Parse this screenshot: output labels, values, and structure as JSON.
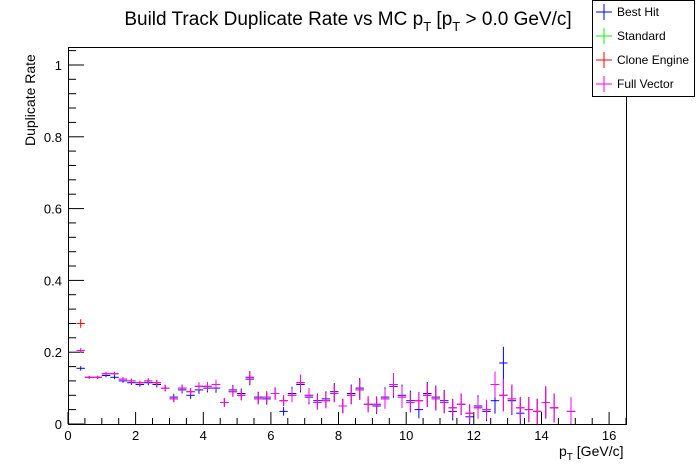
{
  "chart_data": {
    "type": "scatter",
    "title_main": "Build Track Duplicate Rate vs MC p",
    "title_sub1": "T",
    "title_mid": " [p",
    "title_sub2": "T",
    "title_end": " > 0.0 GeV/c]",
    "xlabel_main": "p",
    "xlabel_sub": "T",
    "xlabel_unit": " [GeV/c]",
    "ylabel": "Duplicate Rate",
    "xlim": [
      0,
      16.5
    ],
    "ylim": [
      0,
      1.05
    ],
    "x_ticks": [
      0,
      2,
      4,
      6,
      8,
      10,
      12,
      14,
      16
    ],
    "y_ticks": [
      0,
      0.2,
      0.4,
      0.6,
      0.8,
      1
    ],
    "x_tick_labels": [
      "0",
      "2",
      "4",
      "6",
      "8",
      "10",
      "12",
      "14",
      "16"
    ],
    "y_tick_labels": [
      "0",
      "0.2",
      "0.4",
      "0.6",
      "0.8",
      "1"
    ],
    "bin_width": 0.25,
    "legend_position": "top-right",
    "grid": false,
    "series": [
      {
        "name": "Best Hit",
        "color": "#0000ff",
        "points": [
          [
            0.375,
            0.155,
            0.006
          ],
          [
            0.625,
            0.13,
            0.004
          ],
          [
            0.875,
            0.13,
            0.004
          ],
          [
            1.125,
            0.135,
            0.005
          ],
          [
            1.375,
            0.13,
            0.005
          ],
          [
            1.625,
            0.12,
            0.005
          ],
          [
            1.875,
            0.115,
            0.006
          ],
          [
            2.125,
            0.11,
            0.006
          ],
          [
            2.375,
            0.115,
            0.007
          ],
          [
            2.625,
            0.11,
            0.008
          ],
          [
            2.875,
            0.1,
            0.009
          ],
          [
            3.125,
            0.075,
            0.009
          ],
          [
            3.375,
            0.095,
            0.01
          ],
          [
            3.625,
            0.08,
            0.01
          ],
          [
            3.875,
            0.095,
            0.011
          ],
          [
            4.125,
            0.1,
            0.012
          ],
          [
            4.375,
            0.1,
            0.013
          ],
          [
            4.625,
            0.06,
            0.012
          ],
          [
            4.875,
            0.095,
            0.014
          ],
          [
            5.125,
            0.085,
            0.014
          ],
          [
            5.375,
            0.125,
            0.017
          ],
          [
            5.625,
            0.075,
            0.015
          ],
          [
            5.875,
            0.07,
            0.016
          ],
          [
            6.125,
            0.085,
            0.017
          ],
          [
            6.375,
            0.035,
            0.012
          ],
          [
            6.625,
            0.085,
            0.019
          ],
          [
            6.875,
            0.11,
            0.022
          ],
          [
            7.125,
            0.075,
            0.02
          ],
          [
            7.375,
            0.065,
            0.02
          ],
          [
            7.625,
            0.07,
            0.021
          ],
          [
            7.875,
            0.09,
            0.024
          ],
          [
            8.125,
            0.05,
            0.02
          ],
          [
            8.375,
            0.085,
            0.025
          ],
          [
            8.625,
            0.1,
            0.028
          ],
          [
            8.875,
            0.055,
            0.022
          ],
          [
            9.125,
            0.05,
            0.022
          ],
          [
            9.375,
            0.075,
            0.027
          ],
          [
            9.625,
            0.105,
            0.032
          ],
          [
            9.875,
            0.08,
            0.03
          ],
          [
            10.125,
            0.065,
            0.028
          ],
          [
            10.375,
            0.04,
            0.024
          ],
          [
            10.625,
            0.085,
            0.032
          ],
          [
            10.875,
            0.075,
            0.032
          ],
          [
            11.125,
            0.065,
            0.03
          ],
          [
            11.375,
            0.035,
            0.025
          ],
          [
            11.625,
            0.055,
            0.03
          ],
          [
            11.875,
            0.02,
            0.02
          ],
          [
            12.125,
            0.05,
            0.03
          ],
          [
            12.375,
            0.035,
            0.027
          ],
          [
            12.625,
            0.065,
            0.036
          ],
          [
            12.875,
            0.17,
            0.045
          ],
          [
            13.125,
            0.065,
            0.04
          ],
          [
            13.375,
            0.03,
            0.03
          ],
          [
            13.875,
            0.035,
            0.035
          ],
          [
            14.125,
            0.06,
            0.04
          ],
          [
            14.375,
            0.045,
            0.04
          ]
        ]
      },
      {
        "name": "Standard",
        "color": "#00ff00",
        "points": [
          [
            0.375,
            0.205,
            0.006
          ],
          [
            0.625,
            0.13,
            0.004
          ],
          [
            0.875,
            0.13,
            0.004
          ],
          [
            1.125,
            0.14,
            0.005
          ],
          [
            1.375,
            0.14,
            0.005
          ],
          [
            1.625,
            0.125,
            0.005
          ],
          [
            1.875,
            0.12,
            0.006
          ],
          [
            2.125,
            0.115,
            0.006
          ],
          [
            2.375,
            0.12,
            0.007
          ],
          [
            2.625,
            0.115,
            0.008
          ],
          [
            2.875,
            0.1,
            0.009
          ],
          [
            3.125,
            0.07,
            0.009
          ],
          [
            3.375,
            0.1,
            0.01
          ],
          [
            3.625,
            0.09,
            0.01
          ],
          [
            3.875,
            0.105,
            0.011
          ],
          [
            4.125,
            0.105,
            0.012
          ],
          [
            4.375,
            0.11,
            0.013
          ],
          [
            4.625,
            0.06,
            0.012
          ],
          [
            4.875,
            0.09,
            0.014
          ],
          [
            5.125,
            0.08,
            0.014
          ],
          [
            5.375,
            0.13,
            0.017
          ],
          [
            5.625,
            0.07,
            0.015
          ],
          [
            5.875,
            0.075,
            0.016
          ],
          [
            6.125,
            0.085,
            0.017
          ],
          [
            6.375,
            0.065,
            0.015
          ],
          [
            6.625,
            0.08,
            0.019
          ],
          [
            6.875,
            0.115,
            0.022
          ],
          [
            7.125,
            0.08,
            0.02
          ],
          [
            7.375,
            0.06,
            0.02
          ],
          [
            7.625,
            0.065,
            0.021
          ],
          [
            7.875,
            0.085,
            0.024
          ],
          [
            8.125,
            0.05,
            0.02
          ],
          [
            8.375,
            0.08,
            0.025
          ],
          [
            8.625,
            0.095,
            0.028
          ],
          [
            8.875,
            0.055,
            0.022
          ],
          [
            9.125,
            0.055,
            0.022
          ],
          [
            9.375,
            0.07,
            0.027
          ],
          [
            9.625,
            0.11,
            0.032
          ],
          [
            9.875,
            0.075,
            0.03
          ],
          [
            10.125,
            0.06,
            0.028
          ],
          [
            10.375,
            0.065,
            0.024
          ],
          [
            10.625,
            0.08,
            0.032
          ],
          [
            10.875,
            0.07,
            0.032
          ],
          [
            11.125,
            0.06,
            0.03
          ],
          [
            11.375,
            0.045,
            0.025
          ],
          [
            11.625,
            0.055,
            0.03
          ],
          [
            11.875,
            0.03,
            0.025
          ],
          [
            12.125,
            0.045,
            0.03
          ],
          [
            12.375,
            0.04,
            0.027
          ],
          [
            12.625,
            0.11,
            0.036
          ],
          [
            12.875,
            0.08,
            0.045
          ],
          [
            13.125,
            0.07,
            0.04
          ],
          [
            13.375,
            0.045,
            0.03
          ],
          [
            13.625,
            0.04,
            0.035
          ],
          [
            13.875,
            0.035,
            0.035
          ],
          [
            14.125,
            0.06,
            0.045
          ],
          [
            14.375,
            0.045,
            0.04
          ],
          [
            14.875,
            0.035,
            0.04
          ]
        ]
      },
      {
        "name": "Clone Engine",
        "color": "#ff0000",
        "points": [
          [
            0.375,
            0.28,
            0.012
          ],
          [
            0.625,
            0.13,
            0.004
          ],
          [
            0.875,
            0.13,
            0.004
          ],
          [
            1.125,
            0.14,
            0.005
          ],
          [
            1.375,
            0.14,
            0.005
          ],
          [
            1.625,
            0.125,
            0.005
          ],
          [
            1.875,
            0.12,
            0.006
          ],
          [
            2.125,
            0.115,
            0.006
          ],
          [
            2.375,
            0.12,
            0.007
          ],
          [
            2.625,
            0.115,
            0.008
          ],
          [
            2.875,
            0.1,
            0.009
          ],
          [
            3.125,
            0.07,
            0.009
          ],
          [
            3.375,
            0.1,
            0.01
          ],
          [
            3.625,
            0.09,
            0.01
          ],
          [
            3.875,
            0.105,
            0.011
          ],
          [
            4.125,
            0.105,
            0.012
          ],
          [
            4.375,
            0.11,
            0.013
          ],
          [
            4.625,
            0.06,
            0.012
          ],
          [
            4.875,
            0.09,
            0.014
          ],
          [
            5.125,
            0.08,
            0.014
          ],
          [
            5.375,
            0.13,
            0.017
          ],
          [
            5.625,
            0.07,
            0.015
          ],
          [
            5.875,
            0.075,
            0.016
          ],
          [
            6.125,
            0.085,
            0.017
          ],
          [
            6.375,
            0.065,
            0.015
          ],
          [
            6.625,
            0.08,
            0.019
          ],
          [
            6.875,
            0.115,
            0.022
          ],
          [
            7.125,
            0.08,
            0.02
          ],
          [
            7.375,
            0.06,
            0.02
          ],
          [
            7.625,
            0.065,
            0.021
          ],
          [
            7.875,
            0.085,
            0.024
          ],
          [
            8.125,
            0.05,
            0.02
          ],
          [
            8.375,
            0.08,
            0.025
          ],
          [
            8.625,
            0.095,
            0.028
          ],
          [
            8.875,
            0.055,
            0.022
          ],
          [
            9.125,
            0.055,
            0.022
          ],
          [
            9.375,
            0.07,
            0.027
          ],
          [
            9.625,
            0.11,
            0.032
          ],
          [
            9.875,
            0.075,
            0.03
          ],
          [
            10.125,
            0.06,
            0.028
          ],
          [
            10.375,
            0.065,
            0.024
          ],
          [
            10.625,
            0.08,
            0.032
          ],
          [
            10.875,
            0.07,
            0.032
          ],
          [
            11.125,
            0.06,
            0.03
          ],
          [
            11.375,
            0.045,
            0.025
          ],
          [
            11.625,
            0.055,
            0.03
          ],
          [
            11.875,
            0.03,
            0.025
          ],
          [
            12.125,
            0.045,
            0.03
          ],
          [
            12.375,
            0.04,
            0.027
          ],
          [
            12.625,
            0.11,
            0.036
          ],
          [
            12.875,
            0.08,
            0.045
          ],
          [
            13.125,
            0.07,
            0.04
          ],
          [
            13.375,
            0.045,
            0.03
          ],
          [
            13.625,
            0.04,
            0.035
          ],
          [
            13.875,
            0.035,
            0.035
          ],
          [
            14.125,
            0.06,
            0.045
          ],
          [
            14.375,
            0.045,
            0.04
          ],
          [
            14.875,
            0.035,
            0.04
          ]
        ]
      },
      {
        "name": "Full Vector",
        "color": "#ff00ff",
        "points": [
          [
            0.375,
            0.205,
            0.006
          ],
          [
            0.625,
            0.13,
            0.004
          ],
          [
            0.875,
            0.13,
            0.004
          ],
          [
            1.125,
            0.14,
            0.005
          ],
          [
            1.375,
            0.14,
            0.005
          ],
          [
            1.625,
            0.125,
            0.005
          ],
          [
            1.875,
            0.12,
            0.006
          ],
          [
            2.125,
            0.115,
            0.006
          ],
          [
            2.375,
            0.12,
            0.007
          ],
          [
            2.625,
            0.115,
            0.008
          ],
          [
            2.875,
            0.1,
            0.009
          ],
          [
            3.125,
            0.07,
            0.009
          ],
          [
            3.375,
            0.1,
            0.01
          ],
          [
            3.625,
            0.09,
            0.01
          ],
          [
            3.875,
            0.105,
            0.011
          ],
          [
            4.125,
            0.105,
            0.012
          ],
          [
            4.375,
            0.11,
            0.013
          ],
          [
            4.625,
            0.06,
            0.012
          ],
          [
            4.875,
            0.09,
            0.014
          ],
          [
            5.125,
            0.08,
            0.014
          ],
          [
            5.375,
            0.13,
            0.017
          ],
          [
            5.625,
            0.07,
            0.015
          ],
          [
            5.875,
            0.075,
            0.016
          ],
          [
            6.125,
            0.085,
            0.017
          ],
          [
            6.375,
            0.065,
            0.015
          ],
          [
            6.625,
            0.08,
            0.019
          ],
          [
            6.875,
            0.115,
            0.022
          ],
          [
            7.125,
            0.08,
            0.02
          ],
          [
            7.375,
            0.06,
            0.02
          ],
          [
            7.625,
            0.065,
            0.021
          ],
          [
            7.875,
            0.085,
            0.024
          ],
          [
            8.125,
            0.05,
            0.02
          ],
          [
            8.375,
            0.08,
            0.025
          ],
          [
            8.625,
            0.095,
            0.028
          ],
          [
            8.875,
            0.055,
            0.022
          ],
          [
            9.125,
            0.055,
            0.022
          ],
          [
            9.375,
            0.07,
            0.027
          ],
          [
            9.625,
            0.11,
            0.032
          ],
          [
            9.875,
            0.075,
            0.03
          ],
          [
            10.125,
            0.06,
            0.028
          ],
          [
            10.375,
            0.065,
            0.024
          ],
          [
            10.625,
            0.08,
            0.032
          ],
          [
            10.875,
            0.07,
            0.032
          ],
          [
            11.125,
            0.06,
            0.03
          ],
          [
            11.375,
            0.045,
            0.025
          ],
          [
            11.625,
            0.055,
            0.03
          ],
          [
            11.875,
            0.03,
            0.025
          ],
          [
            12.125,
            0.045,
            0.03
          ],
          [
            12.375,
            0.04,
            0.027
          ],
          [
            12.625,
            0.11,
            0.036
          ],
          [
            12.875,
            0.08,
            0.045
          ],
          [
            13.125,
            0.07,
            0.04
          ],
          [
            13.375,
            0.045,
            0.03
          ],
          [
            13.625,
            0.04,
            0.035
          ],
          [
            13.875,
            0.035,
            0.035
          ],
          [
            14.125,
            0.06,
            0.045
          ],
          [
            14.375,
            0.045,
            0.04
          ],
          [
            14.875,
            0.035,
            0.04
          ]
        ]
      }
    ]
  }
}
